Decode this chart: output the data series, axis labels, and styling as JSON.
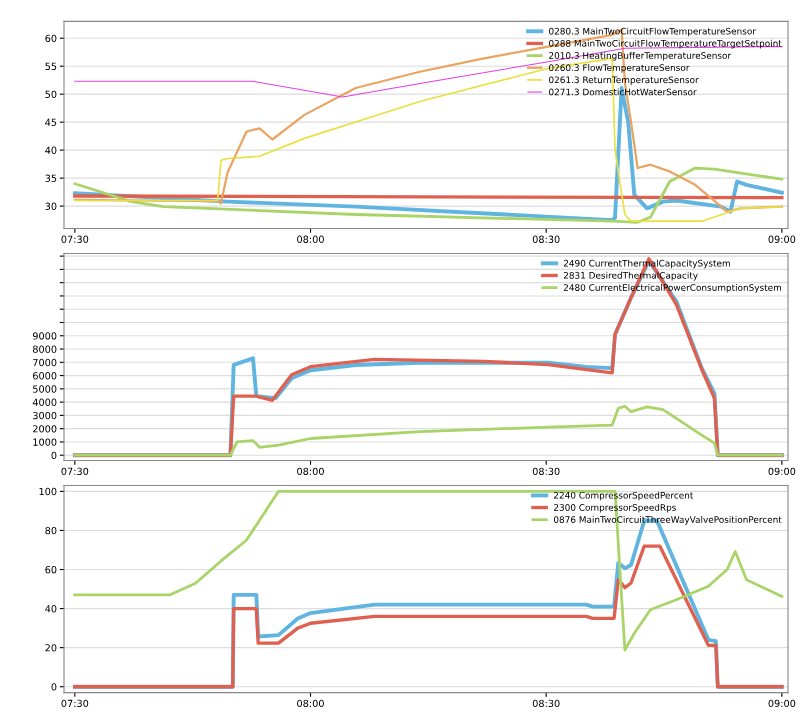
{
  "chart_data": [
    {
      "type": "line",
      "xlim": [
        7.477,
        9.013
      ],
      "ylim": [
        26,
        63
      ],
      "grid": "y",
      "legend": "top right",
      "tick_labels": true,
      "xticks": [
        {
          "value": 7.5,
          "label": "07:30"
        },
        {
          "value": 8.0,
          "label": "08:00"
        },
        {
          "value": 8.5,
          "label": "08:30"
        },
        {
          "value": 9.0,
          "label": "09:00"
        }
      ],
      "yticks": [
        30,
        35,
        40,
        45,
        50,
        55,
        60
      ],
      "series": [
        {
          "name": "0280.3 MainTwoCircuitFlowTemperatureSensor",
          "color": "#60b4e0",
          "x": [
            7.5,
            7.824,
            8.096,
            8.64,
            8.646,
            8.66,
            8.674,
            8.687,
            8.714,
            8.748,
            8.776,
            8.871,
            8.891,
            8.905,
            8.925,
            9.0
          ],
          "values": [
            32.3,
            30.8,
            29.9,
            27.5,
            27.9,
            51.1,
            45,
            32,
            29.6,
            30.8,
            31,
            29.9,
            29,
            34.4,
            33.8,
            32.4
          ]
        },
        {
          "name": "0288 MainTwoCircuitFlowTemperatureTargetSetpoint",
          "color": "#e06050",
          "x": [
            7.5,
            9.0
          ],
          "values": [
            31.8,
            31.5
          ]
        },
        {
          "name": "2010.3 HeatingBufferTemperatureSensor",
          "color": "#a8d468",
          "x": [
            7.5,
            7.62,
            7.688,
            8.096,
            8.64,
            8.694,
            8.721,
            8.762,
            8.816,
            8.857,
            9.0
          ],
          "values": [
            34,
            30.8,
            29.9,
            28.5,
            27.3,
            27.1,
            28,
            34.4,
            36.8,
            36.6,
            34.8
          ]
        },
        {
          "name": "0260.3 FlowTemperatureSensor",
          "color": "#e8a460",
          "x": [
            7.5,
            7.803,
            7.81,
            7.824,
            7.864,
            7.892,
            7.919,
            7.987,
            8.096,
            8.232,
            8.368,
            8.504,
            8.64,
            8.66,
            8.667,
            8.68,
            8.694,
            8.721,
            8.762,
            8.816,
            8.884,
            8.912,
            9.0
          ],
          "values": [
            31.1,
            30.9,
            30.5,
            36,
            43.3,
            43.9,
            41.9,
            46.3,
            51.1,
            54,
            56.4,
            58.5,
            60.6,
            61.5,
            52,
            45,
            36.8,
            37.4,
            36.2,
            33.8,
            29,
            29.6,
            29.9
          ]
        },
        {
          "name": "0261.3 ReturnTemperatureSensor",
          "color": "#e8e040",
          "x": [
            7.5,
            7.803,
            7.81,
            7.824,
            7.892,
            7.987,
            8.232,
            8.504,
            8.64,
            8.646,
            8.667,
            8.68,
            8.83,
            8.912,
            9.0
          ],
          "values": [
            31,
            31,
            38.2,
            38.5,
            38.9,
            42.1,
            48.7,
            54.6,
            56.4,
            40,
            28.5,
            27.3,
            27.3,
            29.6,
            29.9
          ]
        },
        {
          "name": "0271.3 DomesticHotWaterSensor",
          "color": "#e040e0",
          "x": [
            7.5,
            7.878,
            8.068,
            8.232,
            8.504,
            8.667,
            8.966,
            9.0
          ],
          "values": [
            52.3,
            52.3,
            49.5,
            51.9,
            55.8,
            58.2,
            58.5,
            58.5
          ]
        }
      ]
    },
    {
      "type": "line",
      "xlim": [
        7.477,
        9.013
      ],
      "ylim": [
        -400,
        15200
      ],
      "grid": "y",
      "legend": "top right",
      "tick_labels": true,
      "xticks": [
        {
          "value": 7.5,
          "label": "07:30"
        },
        {
          "value": 8.0,
          "label": "08:00"
        },
        {
          "value": 8.5,
          "label": "08:30"
        },
        {
          "value": 9.0,
          "label": "09:00"
        }
      ],
      "yticks": [
        0,
        1000,
        2000,
        3000,
        4000,
        5000,
        6000,
        7000,
        8000,
        9000,
        {
          "value": 10000,
          "label": null
        },
        {
          "value": 11000,
          "label": null
        },
        {
          "value": 12000,
          "label": null
        },
        {
          "value": 13000,
          "label": null
        },
        {
          "value": 14000,
          "label": null
        },
        {
          "value": 15000,
          "label": null
        }
      ],
      "series": [
        {
          "name": "2490 CurrentThermalCapacitySystem",
          "color": "#60b4e0",
          "x": [
            7.5,
            7.83,
            7.837,
            7.878,
            7.885,
            7.926,
            7.96,
            8.0,
            8.096,
            8.232,
            8.504,
            8.585,
            8.64,
            8.646,
            8.68,
            8.718,
            8.776,
            8.83,
            8.857,
            8.864,
            9.0
          ],
          "values": [
            0,
            0,
            6800,
            7300,
            4450,
            4300,
            5800,
            6400,
            6800,
            6970,
            6970,
            6660,
            6560,
            9090,
            11870,
            14650,
            11600,
            6560,
            4650,
            0,
            0
          ]
        },
        {
          "name": "2831 DesiredThermalCapacity",
          "color": "#e06050",
          "x": [
            7.5,
            7.83,
            7.837,
            7.885,
            7.919,
            7.96,
            8.0,
            8.136,
            8.368,
            8.504,
            8.64,
            8.646,
            8.68,
            8.718,
            8.776,
            8.83,
            8.857,
            8.864,
            9.0
          ],
          "values": [
            0,
            0,
            4450,
            4450,
            4140,
            6060,
            6670,
            7220,
            7070,
            6820,
            6210,
            9090,
            11870,
            14800,
            11360,
            6460,
            4290,
            0,
            0
          ]
        },
        {
          "name": "2480 CurrentElectricalPowerConsumptionSystem",
          "color": "#a8d468",
          "x": [
            7.5,
            7.83,
            7.844,
            7.878,
            7.892,
            7.932,
            8.0,
            8.232,
            8.504,
            8.64,
            8.653,
            8.667,
            8.68,
            8.714,
            8.748,
            8.83,
            8.857,
            8.864,
            9.0
          ],
          "values": [
            0,
            0,
            1000,
            1100,
            600,
            760,
            1260,
            1770,
            2120,
            2270,
            3540,
            3690,
            3280,
            3640,
            3430,
            1520,
            910,
            0,
            0
          ]
        }
      ]
    },
    {
      "type": "line",
      "xlim": [
        7.477,
        9.013
      ],
      "ylim": [
        -3,
        103
      ],
      "grid": "y",
      "legend": "top right",
      "tick_labels": true,
      "xticks": [
        {
          "value": 7.5,
          "label": "07:30"
        },
        {
          "value": 8.0,
          "label": "08:00"
        },
        {
          "value": 8.5,
          "label": "08:30"
        },
        {
          "value": 9.0,
          "label": "09:00"
        }
      ],
      "yticks": [
        0,
        20,
        40,
        60,
        80,
        100
      ],
      "series": [
        {
          "name": "2240 CompressorSpeedPercent",
          "color": "#60b4e0",
          "x": [
            7.5,
            7.835,
            7.837,
            7.885,
            7.889,
            7.932,
            7.973,
            8.0,
            8.136,
            8.585,
            8.599,
            8.644,
            8.653,
            8.667,
            8.68,
            8.708,
            8.735,
            8.844,
            8.86,
            8.864,
            9.0
          ],
          "values": [
            0,
            0,
            47,
            47,
            25.7,
            26.4,
            34.9,
            37.7,
            42,
            42,
            41,
            41,
            63.4,
            60.6,
            62.3,
            85,
            85,
            24,
            23.3,
            0,
            0
          ]
        },
        {
          "name": "2300 CompressorSpeedRps",
          "color": "#e06050",
          "x": [
            7.5,
            7.835,
            7.837,
            7.885,
            7.889,
            7.932,
            7.973,
            8.0,
            8.136,
            8.585,
            8.599,
            8.644,
            8.653,
            8.667,
            8.68,
            8.708,
            8.741,
            8.844,
            8.86,
            8.864,
            9.0
          ],
          "values": [
            0,
            0,
            40,
            40,
            22.3,
            22.3,
            30,
            32.5,
            36,
            36,
            35,
            35,
            54.8,
            50.7,
            53.1,
            72,
            72,
            21.2,
            21.2,
            0,
            0
          ]
        },
        {
          "name": "0876 MainTwoCircuitThreeWayValvePositionPercent",
          "color": "#a8d468",
          "x": [
            7.5,
            7.701,
            7.756,
            7.81,
            7.864,
            7.932,
            8.646,
            8.667,
            8.687,
            8.721,
            8.776,
            8.844,
            8.884,
            8.901,
            8.925,
            9.0
          ],
          "values": [
            47,
            47,
            53,
            64.4,
            75,
            100,
            100,
            18.8,
            27.4,
            39.4,
            44.5,
            51.4,
            60,
            69.2,
            54.8,
            46.2
          ]
        }
      ]
    }
  ]
}
